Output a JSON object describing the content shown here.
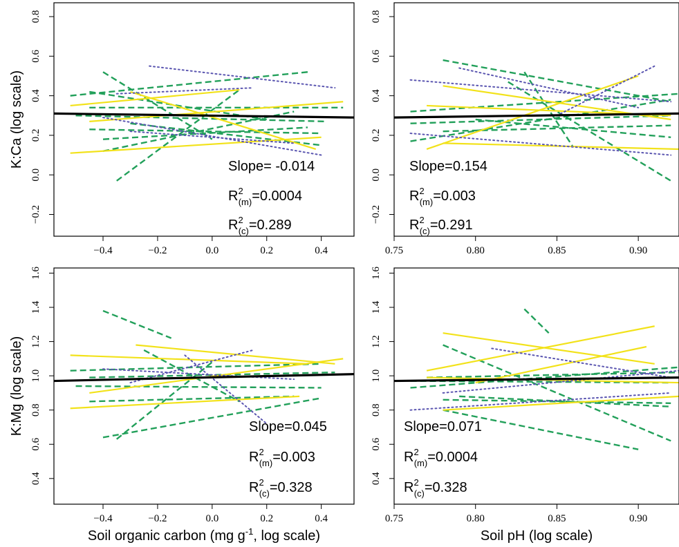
{
  "figure": {
    "colors": {
      "fit": "#000000",
      "dashed": "#22a05a",
      "solid": "#f2e21a",
      "dotted": "#5a55b0"
    },
    "styles": {
      "fit": "solid-thick",
      "green": "dashed",
      "yellow": "solid",
      "blue": "dotted"
    }
  },
  "chart_data": [
    {
      "type": "line",
      "ylabel": "K:Ca (log scale)",
      "xlabel": "",
      "xlim": [
        -0.58,
        0.52
      ],
      "ylim": [
        -0.31,
        0.87
      ],
      "xticks": [
        "−0.4",
        "−0.2",
        "0.0",
        "0.2",
        "0.4"
      ],
      "xtick_values": [
        -0.4,
        -0.2,
        0.0,
        0.2,
        0.4
      ],
      "yticks": [
        "−0.2",
        "0.0",
        "0.2",
        "0.4",
        "0.6",
        "0.8"
      ],
      "ytick_values": [
        -0.2,
        0.0,
        0.2,
        0.4,
        0.6,
        0.8
      ],
      "stats": {
        "slope": "Slope= -0.014",
        "r2m_value": "=0.0004",
        "r2c_value": "=0.289",
        "r": "R",
        "sup": "2",
        "sub_m": "(m)",
        "sub_c": "(c)"
      },
      "fit": [
        [
          -0.58,
          0.31
        ],
        [
          0.52,
          0.29
        ]
      ],
      "series": [
        {
          "style": "green",
          "points": [
            [
              -0.52,
              0.4
            ],
            [
              0.35,
              0.52
            ]
          ]
        },
        {
          "style": "green",
          "points": [
            [
              -0.4,
              0.52
            ],
            [
              0.0,
              0.18
            ]
          ]
        },
        {
          "style": "green",
          "points": [
            [
              -0.35,
              -0.03
            ],
            [
              0.1,
              0.43
            ]
          ]
        },
        {
          "style": "green",
          "points": [
            [
              -0.45,
              0.34
            ],
            [
              0.48,
              0.34
            ]
          ]
        },
        {
          "style": "green",
          "points": [
            [
              -0.5,
              0.3
            ],
            [
              0.42,
              0.27
            ]
          ]
        },
        {
          "style": "green",
          "points": [
            [
              -0.45,
              0.23
            ],
            [
              0.4,
              0.21
            ]
          ]
        },
        {
          "style": "green",
          "points": [
            [
              -0.4,
              0.12
            ],
            [
              0.3,
              0.32
            ]
          ]
        },
        {
          "style": "green",
          "points": [
            [
              -0.45,
              0.42
            ],
            [
              0.2,
              0.28
            ]
          ]
        },
        {
          "style": "green",
          "points": [
            [
              -0.3,
              0.26
            ],
            [
              0.4,
              0.15
            ]
          ]
        },
        {
          "style": "green",
          "points": [
            [
              -0.4,
              0.18
            ],
            [
              0.35,
              0.24
            ]
          ]
        },
        {
          "style": "yellow",
          "points": [
            [
              -0.52,
              0.11
            ],
            [
              0.4,
              0.19
            ]
          ]
        },
        {
          "style": "yellow",
          "points": [
            [
              -0.52,
              0.35
            ],
            [
              0.1,
              0.43
            ]
          ]
        },
        {
          "style": "yellow",
          "points": [
            [
              -0.45,
              0.27
            ],
            [
              0.48,
              0.37
            ]
          ]
        },
        {
          "style": "yellow",
          "points": [
            [
              -0.3,
              0.42
            ],
            [
              0.38,
              0.13
            ]
          ]
        },
        {
          "style": "blue",
          "points": [
            [
              -0.23,
              0.55
            ],
            [
              0.45,
              0.44
            ]
          ]
        },
        {
          "style": "blue",
          "points": [
            [
              -0.35,
              0.41
            ],
            [
              0.15,
              0.44
            ]
          ]
        },
        {
          "style": "blue",
          "points": [
            [
              -0.4,
              0.29
            ],
            [
              0.4,
              0.1
            ]
          ]
        },
        {
          "style": "blue",
          "points": [
            [
              -0.3,
              0.22
            ],
            [
              0.3,
              0.16
            ]
          ]
        }
      ]
    },
    {
      "type": "line",
      "ylabel": "",
      "xlabel": "",
      "xlim": [
        0.75,
        0.925
      ],
      "ylim": [
        -0.31,
        0.87
      ],
      "xticks": [
        "0.75",
        "0.80",
        "0.85",
        "0.90"
      ],
      "xtick_values": [
        0.75,
        0.8,
        0.85,
        0.9
      ],
      "yticks": [
        "−0.2",
        "0.0",
        "0.2",
        "0.4",
        "0.6",
        "0.8"
      ],
      "ytick_values": [
        -0.2,
        0.0,
        0.2,
        0.4,
        0.6,
        0.8
      ],
      "stats": {
        "slope": "Slope=0.154",
        "r2m_value": "=0.003",
        "r2c_value": "=0.291",
        "r": "R",
        "sup": "2",
        "sub_m": "(m)",
        "sub_c": "(c)"
      },
      "fit": [
        [
          0.75,
          0.29
        ],
        [
          0.925,
          0.31
        ]
      ],
      "series": [
        {
          "style": "green",
          "points": [
            [
              0.78,
              0.58
            ],
            [
              0.92,
              0.37
            ]
          ]
        },
        {
          "style": "green",
          "points": [
            [
              0.82,
              0.47
            ],
            [
              0.92,
              -0.03
            ]
          ]
        },
        {
          "style": "green",
          "points": [
            [
              0.76,
              0.32
            ],
            [
              0.925,
              0.41
            ]
          ]
        },
        {
          "style": "green",
          "points": [
            [
              0.76,
              0.26
            ],
            [
              0.92,
              0.3
            ]
          ]
        },
        {
          "style": "green",
          "points": [
            [
              0.76,
              0.17
            ],
            [
              0.92,
              0.38
            ]
          ]
        },
        {
          "style": "green",
          "points": [
            [
              0.78,
              0.22
            ],
            [
              0.92,
              0.25
            ]
          ]
        },
        {
          "style": "green",
          "points": [
            [
              0.8,
              0.28
            ],
            [
              0.92,
              0.19
            ]
          ]
        },
        {
          "style": "green",
          "points": [
            [
              0.83,
              0.52
            ],
            [
              0.86,
              0.14
            ]
          ]
        },
        {
          "style": "yellow",
          "points": [
            [
              0.78,
              0.45
            ],
            [
              0.92,
              0.28
            ]
          ]
        },
        {
          "style": "yellow",
          "points": [
            [
              0.77,
              0.35
            ],
            [
              0.92,
              0.3
            ]
          ]
        },
        {
          "style": "yellow",
          "points": [
            [
              0.77,
              0.13
            ],
            [
              0.9,
              0.5
            ]
          ]
        },
        {
          "style": "yellow",
          "points": [
            [
              0.78,
              0.16
            ],
            [
              0.925,
              0.13
            ]
          ]
        },
        {
          "style": "blue",
          "points": [
            [
              0.76,
              0.48
            ],
            [
              0.92,
              0.37
            ]
          ]
        },
        {
          "style": "blue",
          "points": [
            [
              0.79,
              0.54
            ],
            [
              0.9,
              0.34
            ]
          ]
        },
        {
          "style": "blue",
          "points": [
            [
              0.76,
              0.21
            ],
            [
              0.92,
              0.1
            ]
          ]
        },
        {
          "style": "blue",
          "points": [
            [
              0.85,
              0.3
            ],
            [
              0.91,
              0.55
            ]
          ]
        }
      ]
    },
    {
      "type": "line",
      "ylabel": "K:Mg (log scale)",
      "xlabel": "Soil organic carbon (mg g",
      "xlabel_sup": "-1",
      "xlabel_end": ", log scale)",
      "xlim": [
        -0.58,
        0.52
      ],
      "ylim": [
        0.25,
        1.63
      ],
      "xticks": [
        "−0.4",
        "−0.2",
        "0.0",
        "0.2",
        "0.4"
      ],
      "xtick_values": [
        -0.4,
        -0.2,
        0.0,
        0.2,
        0.4
      ],
      "yticks": [
        "0.4",
        "0.6",
        "0.8",
        "1.0",
        "1.2",
        "1.4",
        "1.6"
      ],
      "ytick_values": [
        0.4,
        0.6,
        0.8,
        1.0,
        1.2,
        1.4,
        1.6
      ],
      "stats": {
        "slope": "Slope=0.045",
        "r2m_value": "=0.003",
        "r2c_value": "=0.328",
        "r": "R",
        "sup": "2",
        "sub_m": "(m)",
        "sub_c": "(c)"
      },
      "fit": [
        [
          -0.58,
          0.97
        ],
        [
          0.52,
          1.01
        ]
      ],
      "series": [
        {
          "style": "green",
          "points": [
            [
              -0.4,
              1.38
            ],
            [
              -0.15,
              1.22
            ]
          ]
        },
        {
          "style": "green",
          "points": [
            [
              -0.52,
              1.03
            ],
            [
              0.4,
              1.07
            ]
          ]
        },
        {
          "style": "green",
          "points": [
            [
              -0.45,
              0.99
            ],
            [
              0.45,
              1.02
            ]
          ]
        },
        {
          "style": "green",
          "points": [
            [
              -0.35,
              0.63
            ],
            [
              0.0,
              1.08
            ]
          ]
        },
        {
          "style": "green",
          "points": [
            [
              -0.5,
              0.94
            ],
            [
              0.4,
              0.93
            ]
          ]
        },
        {
          "style": "green",
          "points": [
            [
              -0.4,
              0.64
            ],
            [
              0.4,
              0.87
            ]
          ]
        },
        {
          "style": "green",
          "points": [
            [
              -0.25,
              1.15
            ],
            [
              0.1,
              0.85
            ]
          ]
        },
        {
          "style": "green",
          "points": [
            [
              -0.45,
              0.85
            ],
            [
              0.3,
              0.88
            ]
          ]
        },
        {
          "style": "yellow",
          "points": [
            [
              -0.52,
              1.12
            ],
            [
              0.35,
              1.07
            ]
          ]
        },
        {
          "style": "yellow",
          "points": [
            [
              -0.28,
              1.18
            ],
            [
              0.45,
              1.07
            ]
          ]
        },
        {
          "style": "yellow",
          "points": [
            [
              -0.45,
              0.9
            ],
            [
              0.48,
              1.1
            ]
          ]
        },
        {
          "style": "yellow",
          "points": [
            [
              -0.52,
              0.81
            ],
            [
              0.32,
              0.88
            ]
          ]
        },
        {
          "style": "blue",
          "points": [
            [
              -0.3,
              0.96
            ],
            [
              0.15,
              1.15
            ]
          ]
        },
        {
          "style": "blue",
          "points": [
            [
              -0.4,
              1.04
            ],
            [
              0.3,
              0.98
            ]
          ]
        },
        {
          "style": "blue",
          "points": [
            [
              -0.1,
              1.12
            ],
            [
              0.2,
              0.72
            ]
          ]
        }
      ]
    },
    {
      "type": "line",
      "ylabel": "",
      "xlabel": "Soil pH (log scale)",
      "xlim": [
        0.75,
        0.925
      ],
      "ylim": [
        0.25,
        1.63
      ],
      "xticks": [
        "0.75",
        "0.80",
        "0.85",
        "0.90"
      ],
      "xtick_values": [
        0.75,
        0.8,
        0.85,
        0.9
      ],
      "yticks": [
        "0.4",
        "0.6",
        "0.8",
        "1.0",
        "1.2",
        "1.4",
        "1.6"
      ],
      "ytick_values": [
        0.4,
        0.6,
        0.8,
        1.0,
        1.2,
        1.4,
        1.6
      ],
      "stats": {
        "slope": "Slope=0.071",
        "r2m_value": "=0.0004",
        "r2c_value": "=0.328",
        "r": "R",
        "sup": "2",
        "sub_m": "(m)",
        "sub_c": "(c)"
      },
      "fit": [
        [
          0.75,
          0.97
        ],
        [
          0.925,
          0.99
        ]
      ],
      "series": [
        {
          "style": "green",
          "points": [
            [
              0.83,
              1.39
            ],
            [
              0.845,
              1.25
            ]
          ]
        },
        {
          "style": "green",
          "points": [
            [
              0.78,
              1.18
            ],
            [
              0.92,
              0.62
            ]
          ]
        },
        {
          "style": "green",
          "points": [
            [
              0.76,
              0.93
            ],
            [
              0.925,
              1.05
            ]
          ]
        },
        {
          "style": "green",
          "points": [
            [
              0.77,
              0.99
            ],
            [
              0.925,
              1.02
            ]
          ]
        },
        {
          "style": "green",
          "points": [
            [
              0.78,
              0.86
            ],
            [
              0.92,
              0.84
            ]
          ]
        },
        {
          "style": "green",
          "points": [
            [
              0.76,
              0.97
            ],
            [
              0.92,
              0.96
            ]
          ]
        },
        {
          "style": "green",
          "points": [
            [
              0.78,
              0.8
            ],
            [
              0.9,
              0.57
            ]
          ]
        },
        {
          "style": "green",
          "points": [
            [
              0.79,
              0.88
            ],
            [
              0.92,
              0.82
            ]
          ]
        },
        {
          "style": "yellow",
          "points": [
            [
              0.78,
              1.25
            ],
            [
              0.91,
              1.07
            ]
          ]
        },
        {
          "style": "yellow",
          "points": [
            [
              0.77,
              1.03
            ],
            [
              0.91,
              1.29
            ]
          ]
        },
        {
          "style": "yellow",
          "points": [
            [
              0.77,
              0.99
            ],
            [
              0.925,
              0.96
            ]
          ]
        },
        {
          "style": "yellow",
          "points": [
            [
              0.78,
              0.8
            ],
            [
              0.925,
              0.88
            ]
          ]
        },
        {
          "style": "yellow",
          "points": [
            [
              0.8,
              0.96
            ],
            [
              0.905,
              1.17
            ]
          ]
        },
        {
          "style": "blue",
          "points": [
            [
              0.76,
              0.8
            ],
            [
              0.92,
              0.9
            ]
          ]
        },
        {
          "style": "blue",
          "points": [
            [
              0.81,
              1.16
            ],
            [
              0.92,
              0.99
            ]
          ]
        },
        {
          "style": "blue",
          "points": [
            [
              0.78,
              0.9
            ],
            [
              0.925,
              1.03
            ]
          ]
        }
      ]
    }
  ]
}
